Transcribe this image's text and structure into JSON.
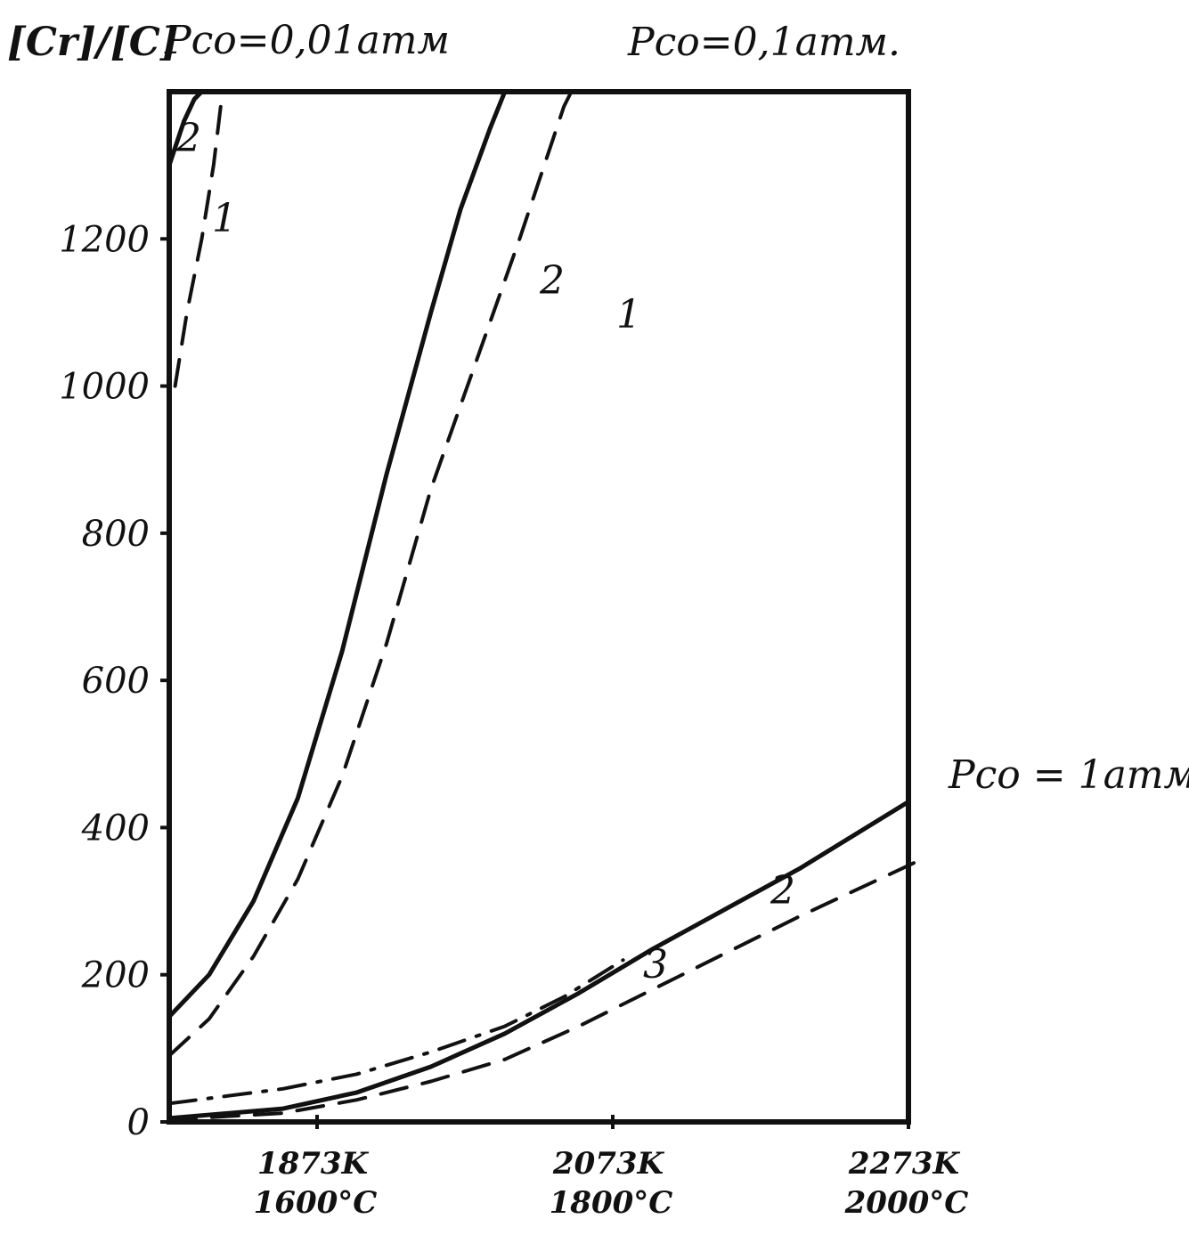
{
  "chart_data": {
    "type": "line",
    "ylabel": "[Cr]/[C]",
    "y_ticks": [
      "0",
      "200",
      "400",
      "600",
      "800",
      "1000",
      "1200"
    ],
    "x_ticks": [
      {
        "x": 1873,
        "kelvin": "1873K",
        "celsius": "1600°C"
      },
      {
        "x": 2073,
        "kelvin": "2073K",
        "celsius": "1800°C"
      },
      {
        "x": 2273,
        "kelvin": "2273K",
        "celsius": "2000°C"
      }
    ],
    "xlim": [
      1773,
      2273
    ],
    "ylim": [
      0,
      1400
    ],
    "pressure_labels": {
      "p001": "Pco=0,01атм",
      "p01": "Pco=0,1атм.",
      "p1": "Pco = 1атм"
    },
    "groups": [
      {
        "pressure": "Pco=0,01атм",
        "series": [
          {
            "name": "2",
            "style": "solid",
            "x": [
              1773,
              1783,
              1790,
              1795
            ],
            "y": [
              1300,
              1360,
              1390,
              1400
            ]
          },
          {
            "name": "1",
            "style": "dashed",
            "x": [
              1777,
              1785,
              1795,
              1803,
              1809
            ],
            "y": [
              1000,
              1100,
              1200,
              1300,
              1400
            ]
          }
        ]
      },
      {
        "pressure": "Pco=0,1атм.",
        "series": [
          {
            "name": "2",
            "style": "solid",
            "x": [
              1773,
              1800,
              1830,
              1860,
              1890,
              1920,
              1950,
              1970,
              1990,
              2000,
              2015
            ],
            "y": [
              143,
              200,
              300,
              440,
              640,
              880,
              1100,
              1240,
              1350,
              1400,
              1400
            ]
          },
          {
            "name": "1",
            "style": "dashed",
            "x": [
              1773,
              1800,
              1830,
              1860,
              1890,
              1920,
              1950,
              1980,
              2010,
              2040,
              2045
            ],
            "y": [
              90,
              140,
              225,
              330,
              470,
              650,
              860,
              1030,
              1200,
              1380,
              1400
            ]
          }
        ]
      },
      {
        "pressure": "Pco = 1атм",
        "series": [
          {
            "name": "2",
            "style": "solid",
            "x": [
              1773,
              1850,
              1900,
              1950,
              2000,
              2050,
              2100,
              2150,
              2200,
              2273
            ],
            "y": [
              5,
              18,
              40,
              75,
              120,
              175,
              235,
              290,
              345,
              435
            ]
          },
          {
            "name": "1",
            "style": "dashed",
            "x": [
              1773,
              1850,
              1900,
              1950,
              2000,
              2050,
              2100,
              2150,
              2200,
              2280
            ],
            "y": [
              3,
              12,
              30,
              55,
              85,
              130,
              180,
              230,
              280,
              355
            ]
          },
          {
            "name": "3",
            "style": "dashdot",
            "x": [
              1773,
              1850,
              1900,
              1950,
              2000,
              2040,
              2080
            ],
            "y": [
              25,
              45,
              65,
              95,
              130,
              170,
              220
            ]
          }
        ]
      }
    ]
  }
}
